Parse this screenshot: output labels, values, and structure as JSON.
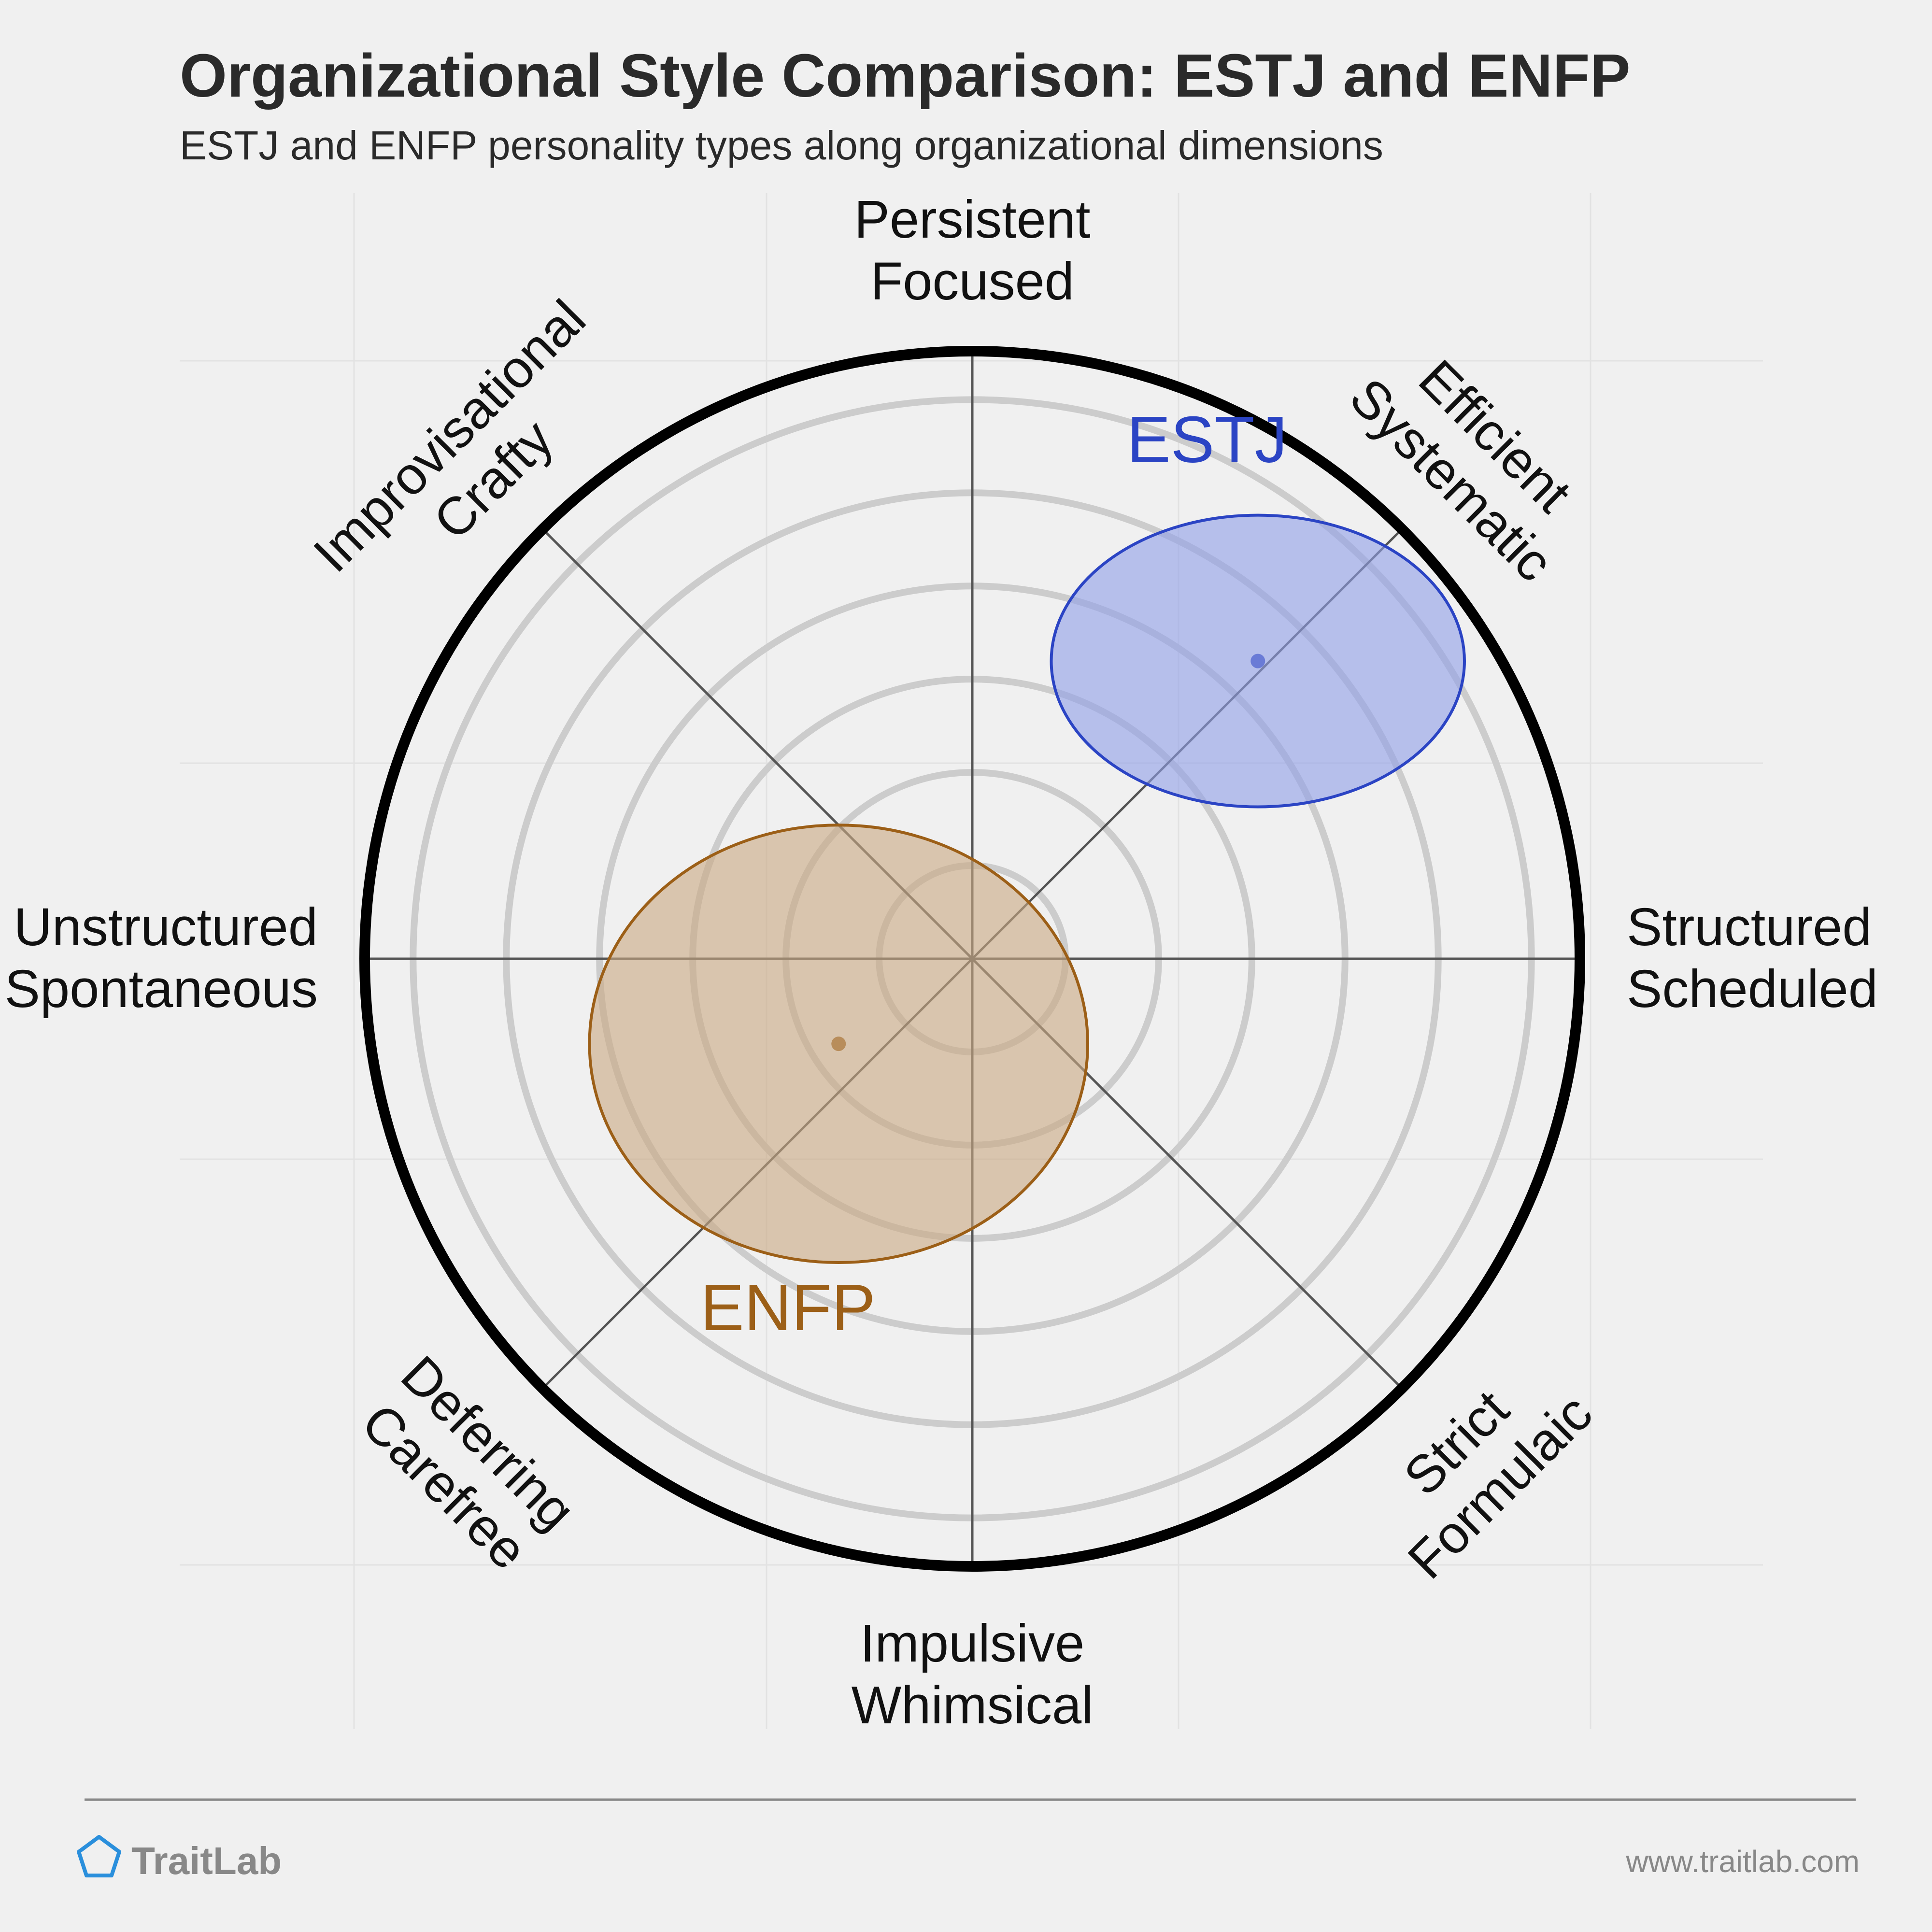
{
  "header": {
    "title": "Organizational Style Comparison: ESTJ and ENFP",
    "subtitle": "ESTJ and ENFP personality types along organizational dimensions"
  },
  "chart_data": {
    "type": "scatter",
    "title": "Organizational Style Comparison: ESTJ and ENFP",
    "subtitle": "ESTJ and ENFP personality types along organizational dimensions",
    "xlim": [
      -1,
      1
    ],
    "ylim": [
      -1,
      1
    ],
    "grid": true,
    "rings": 6,
    "axes": [
      {
        "label": [
          "Persistent",
          "Focused"
        ]
      },
      {
        "label": [
          "Efficient",
          "Systematic"
        ]
      },
      {
        "label": [
          "Structured",
          "Scheduled"
        ]
      },
      {
        "label": [
          "Strict",
          "Formulaic"
        ]
      },
      {
        "label": [
          "Impulsive",
          "Whimsical"
        ]
      },
      {
        "label": [
          "Deferring",
          "Carefree"
        ]
      },
      {
        "label": [
          "Unstructured",
          "Spontaneous"
        ]
      },
      {
        "label": [
          "Improvisational",
          "Crafty"
        ]
      }
    ],
    "series": [
      {
        "name": "ESTJ",
        "x": 0.47,
        "y": 0.49,
        "rx": 0.34,
        "ry": 0.24,
        "color": "#2b44c4",
        "fill": "#8f9fe8"
      },
      {
        "name": "ENFP",
        "x": -0.22,
        "y": -0.14,
        "rx": 0.41,
        "ry": 0.36,
        "color": "#9c5f17",
        "fill": "#c9a882"
      }
    ]
  },
  "footer": {
    "brand": "TraitLab",
    "url": "www.traitlab.com",
    "brand_color": "#2a8fdc"
  }
}
